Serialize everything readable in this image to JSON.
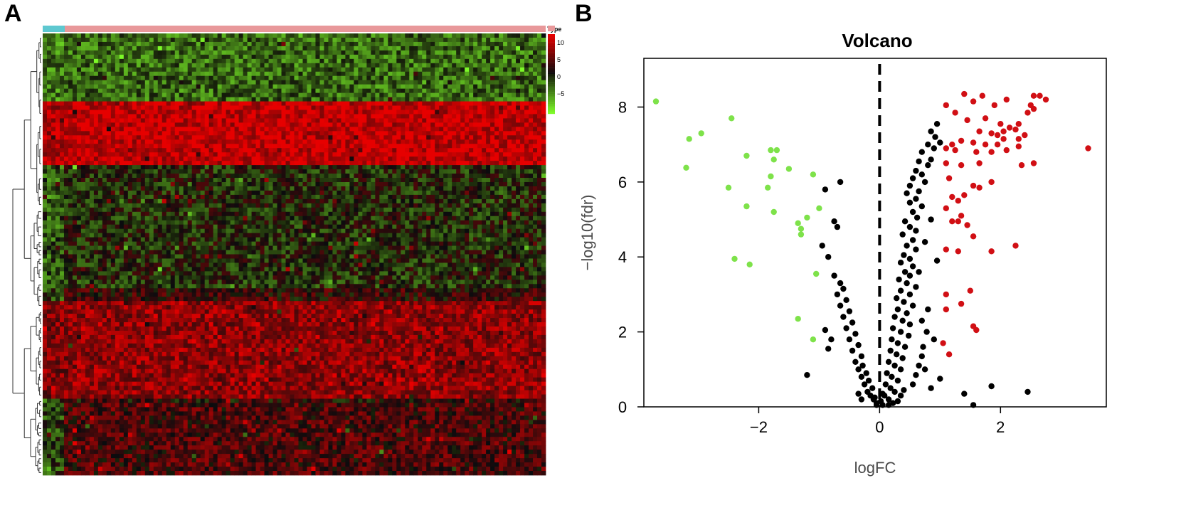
{
  "panels": {
    "a_label": "A",
    "b_label": "B"
  },
  "heatmap": {
    "legend_title": "Type",
    "legend_ticks": [
      "10",
      "5",
      "0",
      "−5"
    ],
    "colors": {
      "high": "#e8101a",
      "mid": "#000000",
      "low": "#7cfc2a",
      "type_group1": "#5ec8d0",
      "type_group2": "#e8989a"
    }
  },
  "chart_data": {
    "type": "scatter",
    "title": "Volcano",
    "xlabel": "logFC",
    "ylabel": "−log10(fdr)",
    "xlim": [
      -3.9,
      3.75
    ],
    "ylim": [
      0,
      9.3
    ],
    "x_ticks": [
      -2,
      0,
      2
    ],
    "x_tick_labels": [
      "−2",
      "0",
      "2"
    ],
    "y_ticks": [
      0,
      2,
      4,
      6,
      8
    ],
    "y_tick_labels": [
      "0",
      "2",
      "4",
      "6",
      "8"
    ],
    "threshold_line_x": 0,
    "grid": false,
    "colors": {
      "down": "#7ee24a",
      "ns": "#000000",
      "up": "#d10f14"
    },
    "series": [
      {
        "values_key": "down",
        "points": [
          [
            -3.7,
            8.15
          ],
          [
            -2.45,
            7.7
          ],
          [
            -3.15,
            7.15
          ],
          [
            -2.95,
            7.3
          ],
          [
            -1.8,
            6.85
          ],
          [
            -1.7,
            6.85
          ],
          [
            -1.75,
            6.6
          ],
          [
            -2.2,
            6.7
          ],
          [
            -3.2,
            6.38
          ],
          [
            -1.5,
            6.35
          ],
          [
            -1.8,
            6.15
          ],
          [
            -1.1,
            6.2
          ],
          [
            -2.5,
            5.85
          ],
          [
            -1.85,
            5.85
          ],
          [
            -2.2,
            5.35
          ],
          [
            -1.75,
            5.2
          ],
          [
            -1.0,
            5.3
          ],
          [
            -1.2,
            5.05
          ],
          [
            -1.35,
            4.9
          ],
          [
            -1.3,
            4.75
          ],
          [
            -1.3,
            4.6
          ],
          [
            -2.4,
            3.95
          ],
          [
            -2.15,
            3.8
          ],
          [
            -1.05,
            3.55
          ],
          [
            -1.35,
            2.35
          ],
          [
            -1.1,
            1.8
          ]
        ]
      },
      {
        "values_key": "up",
        "points": [
          [
            1.4,
            8.35
          ],
          [
            1.7,
            8.3
          ],
          [
            2.1,
            8.2
          ],
          [
            2.55,
            8.3
          ],
          [
            2.65,
            8.3
          ],
          [
            2.75,
            8.2
          ],
          [
            1.1,
            8.05
          ],
          [
            1.9,
            8.05
          ],
          [
            1.55,
            8.15
          ],
          [
            2.5,
            8.05
          ],
          [
            2.45,
            7.85
          ],
          [
            2.55,
            7.95
          ],
          [
            1.25,
            7.85
          ],
          [
            1.45,
            7.65
          ],
          [
            1.75,
            7.7
          ],
          [
            2.0,
            7.55
          ],
          [
            2.3,
            7.55
          ],
          [
            2.25,
            7.4
          ],
          [
            2.15,
            7.45
          ],
          [
            2.05,
            7.35
          ],
          [
            1.95,
            7.25
          ],
          [
            2.05,
            7.15
          ],
          [
            2.3,
            7.15
          ],
          [
            2.4,
            7.25
          ],
          [
            1.85,
            7.3
          ],
          [
            1.65,
            7.35
          ],
          [
            1.75,
            7.0
          ],
          [
            1.95,
            7.0
          ],
          [
            1.85,
            6.8
          ],
          [
            2.1,
            6.85
          ],
          [
            2.3,
            6.95
          ],
          [
            1.55,
            7.05
          ],
          [
            1.35,
            7.1
          ],
          [
            1.2,
            7.0
          ],
          [
            1.1,
            6.9
          ],
          [
            1.25,
            6.85
          ],
          [
            1.6,
            6.8
          ],
          [
            3.45,
            6.9
          ],
          [
            1.1,
            6.5
          ],
          [
            1.35,
            6.45
          ],
          [
            1.65,
            6.5
          ],
          [
            2.35,
            6.45
          ],
          [
            2.55,
            6.5
          ],
          [
            1.15,
            6.1
          ],
          [
            1.85,
            6.0
          ],
          [
            1.55,
            5.9
          ],
          [
            1.65,
            5.85
          ],
          [
            1.4,
            5.65
          ],
          [
            1.2,
            5.6
          ],
          [
            1.3,
            5.5
          ],
          [
            1.1,
            5.3
          ],
          [
            1.35,
            5.1
          ],
          [
            1.2,
            4.95
          ],
          [
            1.3,
            4.95
          ],
          [
            1.45,
            4.85
          ],
          [
            1.55,
            4.55
          ],
          [
            1.1,
            4.2
          ],
          [
            1.3,
            4.15
          ],
          [
            1.85,
            4.15
          ],
          [
            2.25,
            4.3
          ],
          [
            1.5,
            3.1
          ],
          [
            1.1,
            3.0
          ],
          [
            1.35,
            2.75
          ],
          [
            1.1,
            2.6
          ],
          [
            1.55,
            2.15
          ],
          [
            1.6,
            2.05
          ],
          [
            1.05,
            1.7
          ],
          [
            1.15,
            1.4
          ]
        ]
      },
      {
        "values_key": "ns",
        "points": [
          [
            0.95,
            7.55
          ],
          [
            0.85,
            7.35
          ],
          [
            0.92,
            7.2
          ],
          [
            1.0,
            7.05
          ],
          [
            0.8,
            7.0
          ],
          [
            0.9,
            6.9
          ],
          [
            0.7,
            6.8
          ],
          [
            0.85,
            6.6
          ],
          [
            0.65,
            6.55
          ],
          [
            0.8,
            6.45
          ],
          [
            0.6,
            6.3
          ],
          [
            0.7,
            6.2
          ],
          [
            0.55,
            6.1
          ],
          [
            0.75,
            6.0
          ],
          [
            0.5,
            5.9
          ],
          [
            0.65,
            5.75
          ],
          [
            0.45,
            5.7
          ],
          [
            0.6,
            5.55
          ],
          [
            0.5,
            5.45
          ],
          [
            0.7,
            5.35
          ],
          [
            0.55,
            5.2
          ],
          [
            0.62,
            5.05
          ],
          [
            0.42,
            4.95
          ],
          [
            0.5,
            4.8
          ],
          [
            0.6,
            4.7
          ],
          [
            0.38,
            4.6
          ],
          [
            0.55,
            4.45
          ],
          [
            0.45,
            4.3
          ],
          [
            0.6,
            4.2
          ],
          [
            0.4,
            4.05
          ],
          [
            0.5,
            3.95
          ],
          [
            0.35,
            3.85
          ],
          [
            0.55,
            3.75
          ],
          [
            0.42,
            3.6
          ],
          [
            0.5,
            3.5
          ],
          [
            0.32,
            3.4
          ],
          [
            0.45,
            3.3
          ],
          [
            0.6,
            3.2
          ],
          [
            0.35,
            3.1
          ],
          [
            0.5,
            3.0
          ],
          [
            0.28,
            2.9
          ],
          [
            0.4,
            2.8
          ],
          [
            0.55,
            2.7
          ],
          [
            0.3,
            2.6
          ],
          [
            0.45,
            2.5
          ],
          [
            0.25,
            2.4
          ],
          [
            0.38,
            2.3
          ],
          [
            0.5,
            2.2
          ],
          [
            0.22,
            2.1
          ],
          [
            0.35,
            2.0
          ],
          [
            0.48,
            1.9
          ],
          [
            0.2,
            1.8
          ],
          [
            0.3,
            1.7
          ],
          [
            0.42,
            1.6
          ],
          [
            0.18,
            1.5
          ],
          [
            0.28,
            1.4
          ],
          [
            0.38,
            1.3
          ],
          [
            0.15,
            1.2
          ],
          [
            0.25,
            1.1
          ],
          [
            0.35,
            1.0
          ],
          [
            0.12,
            0.9
          ],
          [
            0.2,
            0.8
          ],
          [
            0.3,
            0.7
          ],
          [
            0.1,
            0.6
          ],
          [
            0.18,
            0.5
          ],
          [
            0.25,
            0.4
          ],
          [
            0.08,
            0.3
          ],
          [
            0.15,
            0.2
          ],
          [
            0.22,
            0.1
          ],
          [
            0.05,
            0.05
          ],
          [
            -0.05,
            0.1
          ],
          [
            -0.1,
            0.2
          ],
          [
            -0.15,
            0.3
          ],
          [
            -0.2,
            0.4
          ],
          [
            -0.12,
            0.5
          ],
          [
            -0.25,
            0.6
          ],
          [
            -0.18,
            0.7
          ],
          [
            -0.3,
            0.8
          ],
          [
            -0.22,
            0.9
          ],
          [
            -0.35,
            1.0
          ],
          [
            -0.28,
            1.1
          ],
          [
            -0.4,
            1.2
          ],
          [
            -0.3,
            1.35
          ],
          [
            -0.45,
            1.5
          ],
          [
            -0.35,
            1.65
          ],
          [
            -0.5,
            1.8
          ],
          [
            -0.4,
            1.95
          ],
          [
            -0.55,
            2.1
          ],
          [
            -0.45,
            2.25
          ],
          [
            -0.6,
            2.4
          ],
          [
            -0.5,
            2.55
          ],
          [
            -0.65,
            2.7
          ],
          [
            -0.55,
            2.85
          ],
          [
            -0.7,
            3.0
          ],
          [
            -0.6,
            3.15
          ],
          [
            -0.65,
            3.3
          ],
          [
            -0.75,
            3.5
          ],
          [
            -0.85,
            4.0
          ],
          [
            -0.95,
            4.3
          ],
          [
            -0.7,
            4.8
          ],
          [
            -0.75,
            4.95
          ],
          [
            -0.9,
            5.8
          ],
          [
            -0.65,
            6.0
          ],
          [
            -1.2,
            0.85
          ],
          [
            -0.8,
            1.8
          ],
          [
            -0.9,
            2.05
          ],
          [
            -0.85,
            1.55
          ],
          [
            0.75,
            1.0
          ],
          [
            0.85,
            0.5
          ],
          [
            0.9,
            1.8
          ],
          [
            1.0,
            0.75
          ],
          [
            1.4,
            0.35
          ],
          [
            1.55,
            0.05
          ],
          [
            1.85,
            0.55
          ],
          [
            2.45,
            0.4
          ],
          [
            0.7,
            2.3
          ],
          [
            0.8,
            2.6
          ],
          [
            0.65,
            3.6
          ],
          [
            0.95,
            3.9
          ],
          [
            0.75,
            4.4
          ],
          [
            0.85,
            5.0
          ],
          [
            0.15,
            0.05
          ],
          [
            -0.05,
            0.05
          ],
          [
            0.02,
            0.15
          ],
          [
            -0.08,
            0.25
          ],
          [
            0.05,
            0.35
          ],
          [
            0.3,
            0.15
          ],
          [
            0.35,
            0.3
          ],
          [
            0.4,
            0.45
          ],
          [
            -0.3,
            0.2
          ],
          [
            -0.35,
            0.35
          ],
          [
            0.55,
            0.6
          ],
          [
            0.6,
            0.85
          ],
          [
            0.65,
            1.1
          ],
          [
            0.7,
            1.35
          ],
          [
            0.72,
            1.6
          ],
          [
            0.78,
            2.0
          ]
        ]
      }
    ]
  }
}
